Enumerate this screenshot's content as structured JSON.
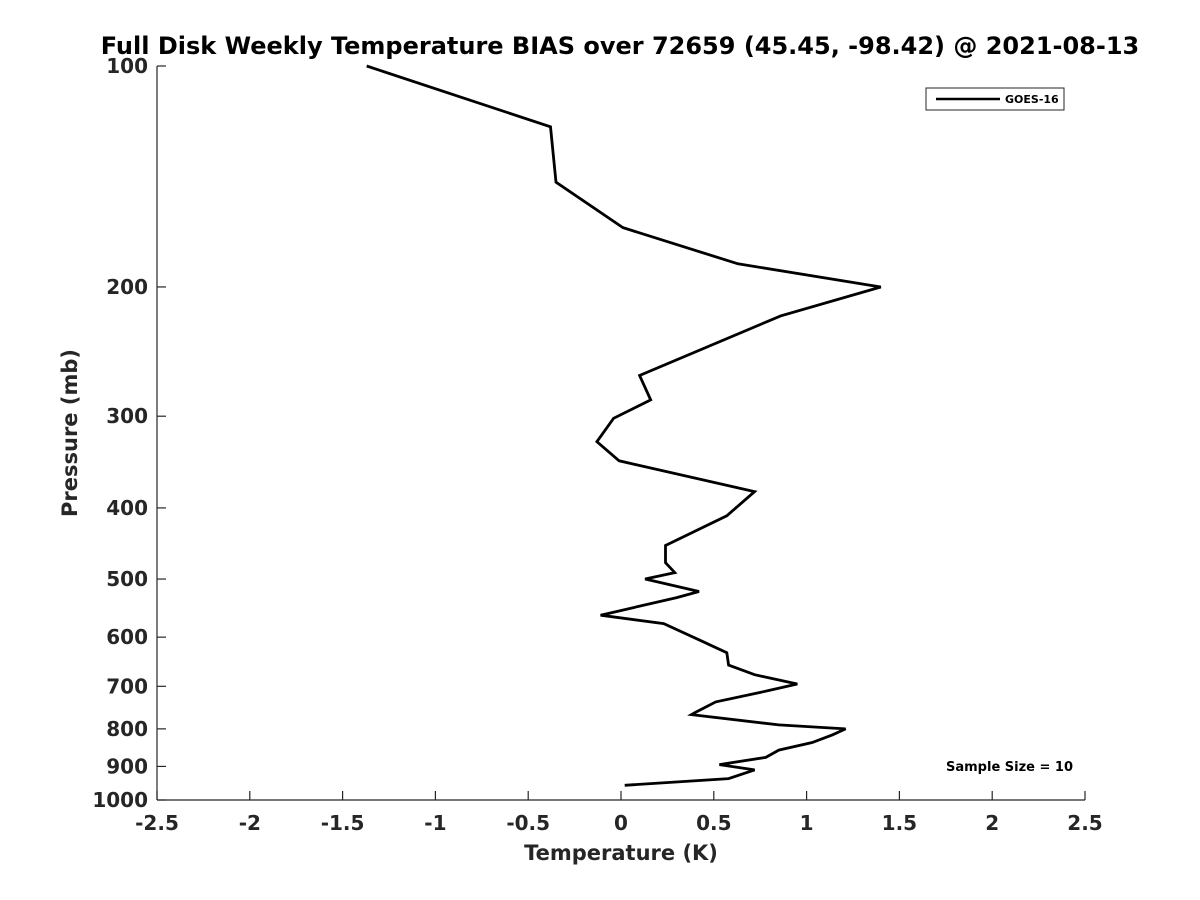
{
  "chart_data": {
    "type": "line",
    "title": "Full Disk Weekly Temperature BIAS over 72659 (45.45, -98.42) @ 2021-08-13",
    "xlabel": "Temperature (K)",
    "ylabel": "Pressure (mb)",
    "xlim": [
      -2.5,
      2.5
    ],
    "ylim": [
      100,
      1000
    ],
    "y_scale": "log",
    "y_reversed": true,
    "x_ticks": [
      -2.5,
      -2,
      -1.5,
      -1,
      -0.5,
      0,
      0.5,
      1,
      1.5,
      2,
      2.5
    ],
    "x_tick_labels": [
      "-2.5",
      "-2",
      "-1.5",
      "-1",
      "-0.5",
      "0",
      "0.5",
      "1",
      "1.5",
      "2",
      "2.5"
    ],
    "y_ticks": [
      100,
      200,
      300,
      400,
      500,
      600,
      700,
      800,
      900,
      1000
    ],
    "y_tick_labels": [
      "100",
      "200",
      "300",
      "400",
      "500",
      "600",
      "700",
      "800",
      "900",
      "1000"
    ],
    "grid": false,
    "legend_position": "top-right",
    "series": [
      {
        "name": "GOES-16",
        "color": "#000000",
        "x": [
          -1.37,
          -0.38,
          -0.35,
          0.01,
          0.63,
          1.4,
          0.86,
          0.1,
          0.16,
          -0.04,
          -0.13,
          -0.01,
          0.72,
          0.57,
          0.24,
          0.24,
          0.29,
          0.13,
          0.42,
          0.3,
          -0.11,
          0.23,
          0.42,
          0.57,
          0.58,
          0.72,
          0.95,
          0.79,
          0.51,
          0.4,
          0.38,
          0.85,
          1.21,
          1.14,
          1.03,
          0.85,
          0.78,
          0.53,
          0.72,
          0.58,
          0.02
        ],
        "y": [
          100,
          121,
          144,
          166,
          186,
          200,
          219,
          264,
          285,
          302,
          325,
          345,
          380,
          410,
          450,
          475,
          490,
          500,
          520,
          530,
          560,
          575,
          605,
          630,
          655,
          675,
          695,
          710,
          735,
          760,
          765,
          790,
          800,
          815,
          835,
          855,
          875,
          895,
          910,
          935,
          955
        ]
      }
    ],
    "annotations": [
      "Sample Size = 10"
    ]
  }
}
